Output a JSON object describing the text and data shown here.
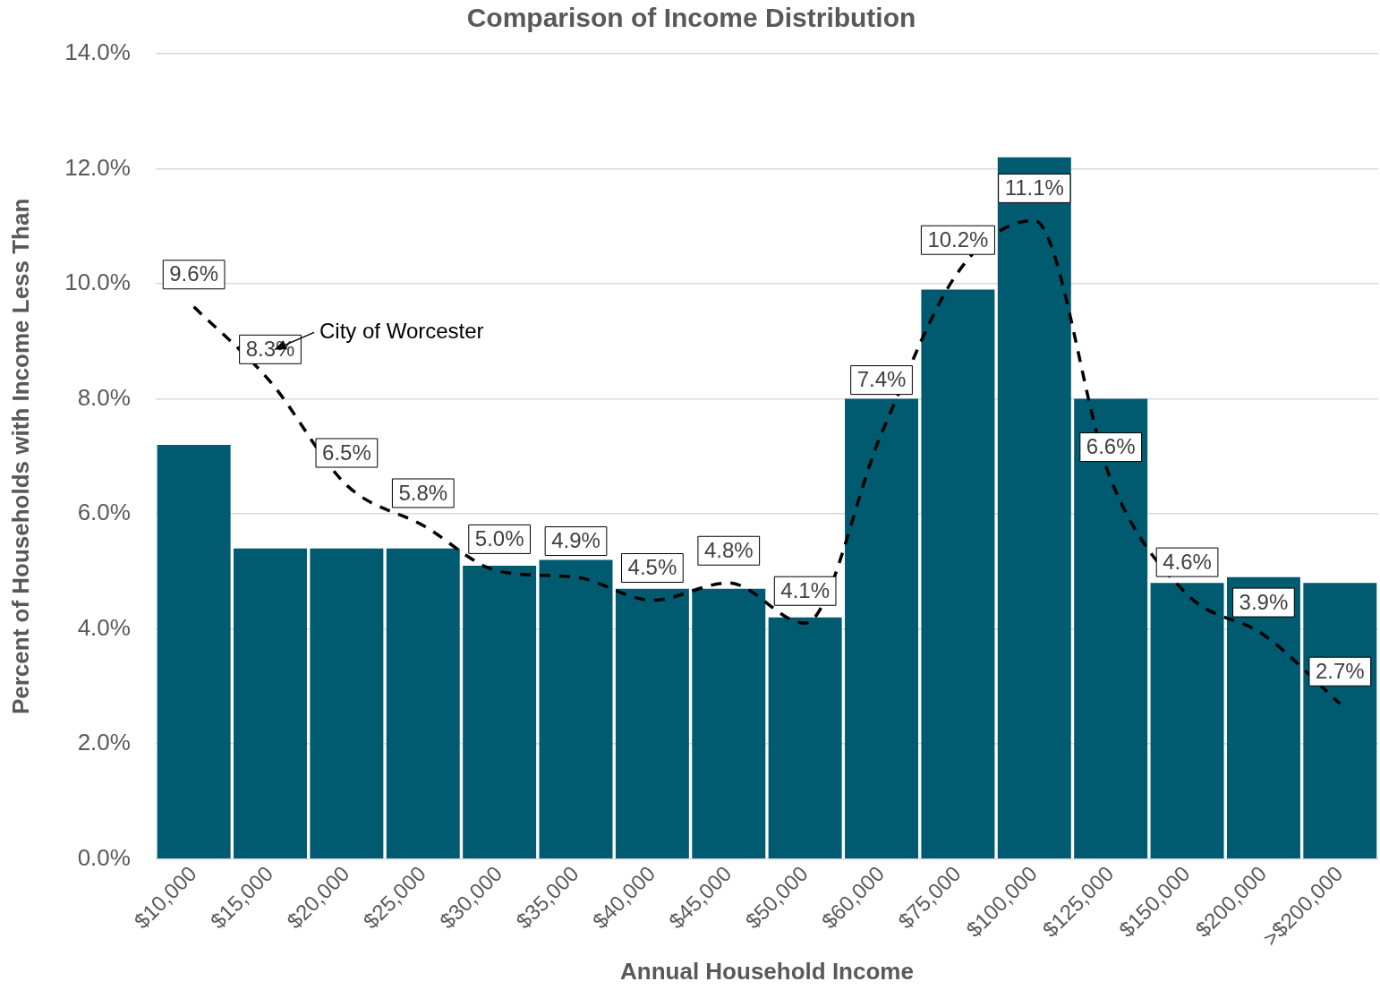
{
  "chart_data": {
    "type": "bar",
    "title": "Comparison of Income Distribution",
    "xlabel": "Annual Household Income",
    "ylabel": "Percent of Households with Income Less Than",
    "categories": [
      "$10,000",
      "$15,000",
      "$20,000",
      "$25,000",
      "$30,000",
      "$35,000",
      "$40,000",
      "$45,000",
      "$50,000",
      "$60,000",
      "$75,000",
      "$100,000",
      "$125,000",
      "$150,000",
      "$200,000",
      ">$200,000"
    ],
    "series": [
      {
        "color": "#005a70",
        "values": [
          7.2,
          5.4,
          5.4,
          5.4,
          5.1,
          5.2,
          4.7,
          4.7,
          4.2,
          8.0,
          9.9,
          12.2,
          8.0,
          4.8,
          4.9,
          4.8
        ]
      },
      {
        "type": "line",
        "name": "City of Worcester",
        "color": "#000000",
        "line_style": "dashed",
        "marker": "none",
        "values": [
          9.6,
          8.3,
          6.5,
          5.8,
          5.0,
          4.9,
          4.5,
          4.8,
          4.1,
          7.4,
          10.2,
          11.1,
          6.6,
          4.6,
          3.9,
          2.7
        ],
        "value_labels": [
          "9.6%",
          "8.3%",
          "6.5%",
          "5.8%",
          "5.0%",
          "4.9%",
          "4.5%",
          "4.8%",
          "4.1%",
          "7.4%",
          "10.2%",
          "11.1%",
          "6.6%",
          "4.6%",
          "3.9%",
          "2.7%"
        ]
      }
    ],
    "ylim": [
      0,
      14
    ],
    "yticks": [
      {
        "value": 0,
        "label": "0.0%"
      },
      {
        "value": 2,
        "label": "2.0%"
      },
      {
        "value": 4,
        "label": "4.0%"
      },
      {
        "value": 6,
        "label": "6.0%"
      },
      {
        "value": 8,
        "label": "8.0%"
      },
      {
        "value": 10,
        "label": "10.0%"
      },
      {
        "value": 12,
        "label": "12.0%"
      },
      {
        "value": 14,
        "label": "14.0%"
      }
    ],
    "grid": "y"
  }
}
